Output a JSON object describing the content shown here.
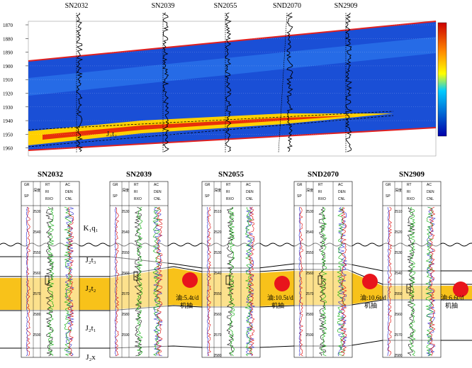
{
  "top_section": {
    "depth_labels": [
      "1870",
      "1880",
      "1890",
      "1900",
      "1910",
      "1920",
      "1930",
      "1940",
      "1950",
      "1960"
    ],
    "wells": [
      "SN2032",
      "SN2039",
      "SN2055",
      "SND2070",
      "SN2909"
    ],
    "horizon_label": "J₂t₂"
  },
  "bottom_section": {
    "wells": [
      {
        "name": "SN2032",
        "depth_ticks": [
          "2530",
          "2540",
          "2550",
          "2560",
          "2570",
          "2580",
          "2590"
        ]
      },
      {
        "name": "SN2039",
        "depth_ticks": [
          "2530",
          "2540",
          "2550",
          "2560",
          "2570",
          "2580",
          "2590"
        ]
      },
      {
        "name": "SN2055",
        "depth_ticks": [
          "2510",
          "2520",
          "2530",
          "2540",
          "2550",
          "2560",
          "2570",
          "2580"
        ]
      },
      {
        "name": "SND2070",
        "depth_ticks": [
          "2530",
          "2540",
          "2550",
          "2560",
          "2570",
          "2580",
          "2590"
        ]
      },
      {
        "name": "SN2909",
        "depth_ticks": [
          "2510",
          "2520",
          "2530",
          "2540",
          "2550",
          "2560",
          "2570",
          "2580"
        ]
      }
    ],
    "log_headers": [
      "GR",
      "SP",
      "RT",
      "RI",
      "RXO",
      "AC",
      "DEN",
      "CNL"
    ],
    "depth_header": "深度",
    "layers": [
      "K₁q₁",
      "J₂t₃",
      "J₂t₂",
      "J₂t₁",
      "J₂x"
    ],
    "annotations": [
      {
        "text": "油:5.4t/d",
        "method": "机抽"
      },
      {
        "text": "油:10.5t/d",
        "method": "机抽"
      },
      {
        "text": "油:10.6t/d",
        "method": "机抽"
      },
      {
        "text": "油:6.6t/d",
        "method": "机抽"
      }
    ]
  }
}
